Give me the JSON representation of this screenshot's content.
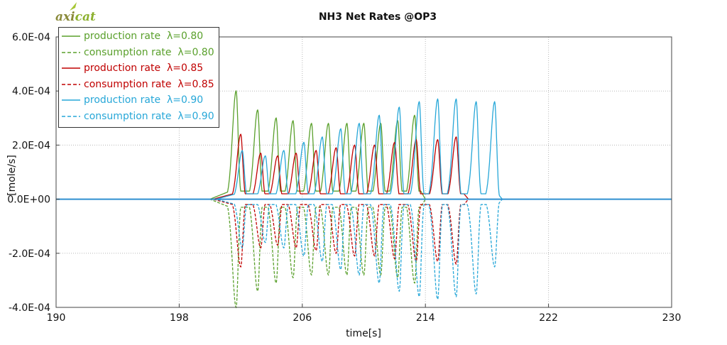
{
  "logo": {
    "text_a": "axi",
    "text_b": "cat"
  },
  "chart_data": {
    "type": "line",
    "title": "NH3 Net Rates @OP3",
    "xlabel": "time[s]",
    "ylabel": "[mole/s]",
    "xlim": [
      190,
      230
    ],
    "ylim": [
      -0.0004,
      0.0006
    ],
    "xticks": [
      190,
      198,
      206,
      214,
      222,
      230
    ],
    "xtick_labels": [
      "190",
      "198",
      "206",
      "214",
      "222",
      "230"
    ],
    "yticks": [
      -0.0004,
      -0.0002,
      0,
      0.0002,
      0.0004,
      0.0006
    ],
    "ytick_labels": [
      "-4.0E-04",
      "-2.0E-04",
      "0.0E+00",
      "2.0E-04",
      "4.0E-04",
      "6.0E-04"
    ],
    "grid": true,
    "legend_position": "top-left",
    "series": [
      {
        "name": "production rate  λ=0.80",
        "color": "#5aa02c",
        "dashed": false,
        "sign": 1,
        "start": 200.0,
        "end": 214.0,
        "base": 3e-05,
        "peaks": [
          [
            201.7,
            0.0004
          ],
          [
            203.1,
            0.00033
          ],
          [
            204.3,
            0.0003
          ],
          [
            205.4,
            0.00029
          ],
          [
            206.6,
            0.00028
          ],
          [
            207.7,
            0.00028
          ],
          [
            208.9,
            0.00028
          ],
          [
            210.0,
            0.00028
          ],
          [
            211.1,
            0.00028
          ],
          [
            212.2,
            0.00029
          ],
          [
            213.3,
            0.00031
          ]
        ]
      },
      {
        "name": "consumption rate  λ=0.80",
        "color": "#5aa02c",
        "dashed": true,
        "sign": -1,
        "start": 200.0,
        "end": 214.0,
        "base": 3e-05,
        "peaks": [
          [
            201.7,
            0.0004
          ],
          [
            203.1,
            0.00034
          ],
          [
            204.3,
            0.00031
          ],
          [
            205.4,
            0.00029
          ],
          [
            206.6,
            0.00028
          ],
          [
            207.7,
            0.00028
          ],
          [
            208.9,
            0.00028
          ],
          [
            210.0,
            0.00028
          ],
          [
            211.1,
            0.00028
          ],
          [
            212.2,
            0.00029
          ],
          [
            213.3,
            0.00031
          ]
        ]
      },
      {
        "name": "production rate  λ=0.85",
        "color": "#c00000",
        "dashed": false,
        "sign": 1,
        "start": 200.2,
        "end": 216.8,
        "base": 2e-05,
        "peaks": [
          [
            202.0,
            0.00024
          ],
          [
            203.3,
            0.00017
          ],
          [
            204.4,
            0.00016
          ],
          [
            205.6,
            0.00017
          ],
          [
            206.9,
            0.00018
          ],
          [
            208.2,
            0.00019
          ],
          [
            209.4,
            0.0002
          ],
          [
            210.7,
            0.0002
          ],
          [
            212.0,
            0.00021
          ],
          [
            213.4,
            0.00022
          ],
          [
            214.8,
            0.00022
          ],
          [
            216.0,
            0.00023
          ]
        ]
      },
      {
        "name": "consumption rate  λ=0.85",
        "color": "#c00000",
        "dashed": true,
        "sign": -1,
        "start": 200.2,
        "end": 216.8,
        "base": 2e-05,
        "peaks": [
          [
            202.0,
            0.00025
          ],
          [
            203.3,
            0.00018
          ],
          [
            204.4,
            0.00017
          ],
          [
            205.6,
            0.00018
          ],
          [
            206.9,
            0.00019
          ],
          [
            208.2,
            0.0002
          ],
          [
            209.4,
            0.00021
          ],
          [
            210.7,
            0.00021
          ],
          [
            212.0,
            0.00022
          ],
          [
            213.4,
            0.00023
          ],
          [
            214.8,
            0.00023
          ],
          [
            216.0,
            0.00024
          ]
        ]
      },
      {
        "name": "production rate  λ=0.90",
        "color": "#27a7d8",
        "dashed": false,
        "sign": 1,
        "start": 200.4,
        "end": 219.0,
        "base": 2e-05,
        "peaks": [
          [
            202.1,
            0.00018
          ],
          [
            203.6,
            0.00016
          ],
          [
            204.8,
            0.00018
          ],
          [
            206.1,
            0.00021
          ],
          [
            207.3,
            0.00023
          ],
          [
            208.5,
            0.00026
          ],
          [
            209.7,
            0.00028
          ],
          [
            211.0,
            0.00031
          ],
          [
            212.3,
            0.00034
          ],
          [
            213.6,
            0.00036
          ],
          [
            214.8,
            0.00037
          ],
          [
            216.0,
            0.00037
          ],
          [
            217.3,
            0.00036
          ],
          [
            218.5,
            0.00036
          ]
        ]
      },
      {
        "name": "consumption rate  λ=0.90",
        "color": "#27a7d8",
        "dashed": true,
        "sign": -1,
        "start": 200.4,
        "end": 219.0,
        "base": 2e-05,
        "peaks": [
          [
            202.1,
            0.00018
          ],
          [
            203.6,
            0.00016
          ],
          [
            204.8,
            0.00018
          ],
          [
            206.1,
            0.00021
          ],
          [
            207.3,
            0.00023
          ],
          [
            208.5,
            0.00026
          ],
          [
            209.7,
            0.00028
          ],
          [
            211.0,
            0.00031
          ],
          [
            212.3,
            0.00034
          ],
          [
            213.6,
            0.00036
          ],
          [
            214.8,
            0.00037
          ],
          [
            216.0,
            0.00036
          ],
          [
            217.3,
            0.00035
          ],
          [
            218.5,
            0.00025
          ]
        ]
      }
    ],
    "baseline": {
      "color": "#2f8fd0"
    }
  }
}
